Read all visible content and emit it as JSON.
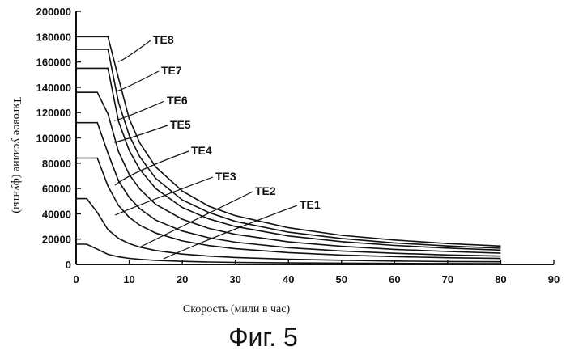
{
  "chart_data": {
    "type": "line",
    "ylabel": "Тяговое усилие (фунты)",
    "xlabel": "Скорость (мили в час)",
    "caption": "Фиг. 5",
    "xlim": [
      0,
      90
    ],
    "ylim": [
      0,
      200000
    ],
    "x_ticks": [
      "0",
      "10",
      "20",
      "30",
      "40",
      "50",
      "60",
      "70",
      "80",
      "90"
    ],
    "y_ticks": [
      "0",
      "20000",
      "40000",
      "60000",
      "80000",
      "100000",
      "120000",
      "140000",
      "160000",
      "180000",
      "200000"
    ],
    "x": [
      0,
      2,
      4,
      6,
      8,
      10,
      12,
      15,
      20,
      25,
      30,
      40,
      50,
      60,
      70,
      80
    ],
    "series": [
      {
        "name": "TE8",
        "values": [
          180000,
          180000,
          180000,
          180000,
          147000,
          115000,
          96000,
          77000,
          58000,
          46000,
          38500,
          29000,
          23000,
          19300,
          16500,
          14500
        ]
      },
      {
        "name": "TE7",
        "values": [
          170000,
          170000,
          170000,
          170000,
          128000,
          102000,
          85000,
          68000,
          51000,
          41000,
          34000,
          25500,
          20500,
          17000,
          14600,
          12800
        ]
      },
      {
        "name": "TE6",
        "values": [
          155000,
          155000,
          155000,
          155000,
          113000,
          90000,
          75000,
          60000,
          45000,
          36000,
          30000,
          22500,
          18000,
          15000,
          12900,
          11300
        ]
      },
      {
        "name": "TE5",
        "values": [
          136000,
          136000,
          136000,
          119000,
          89000,
          71000,
          59500,
          47500,
          35700,
          28500,
          23800,
          17800,
          14300,
          11900,
          10200,
          8900
        ]
      },
      {
        "name": "TE4",
        "values": [
          112000,
          112000,
          112000,
          88000,
          66000,
          53000,
          44000,
          35000,
          26400,
          21100,
          17600,
          13200,
          10600,
          8800,
          7500,
          6600
        ]
      },
      {
        "name": "TE3",
        "values": [
          84000,
          84000,
          84000,
          62000,
          46500,
          37200,
          31000,
          24800,
          18600,
          14900,
          12400,
          9300,
          7400,
          6200,
          5300,
          4700
        ]
      },
      {
        "name": "TE2",
        "values": [
          52000,
          52000,
          41000,
          27500,
          20500,
          16500,
          13700,
          11000,
          8200,
          6600,
          5500,
          4100,
          3300,
          2700,
          2300,
          2100
        ]
      },
      {
        "name": "TE1",
        "values": [
          16000,
          16000,
          12000,
          8000,
          6000,
          4800,
          4000,
          3200,
          2400,
          1900,
          1600,
          1200,
          1000,
          800,
          700,
          600
        ]
      }
    ],
    "grid": false,
    "legend": "inline labels with leader lines"
  }
}
